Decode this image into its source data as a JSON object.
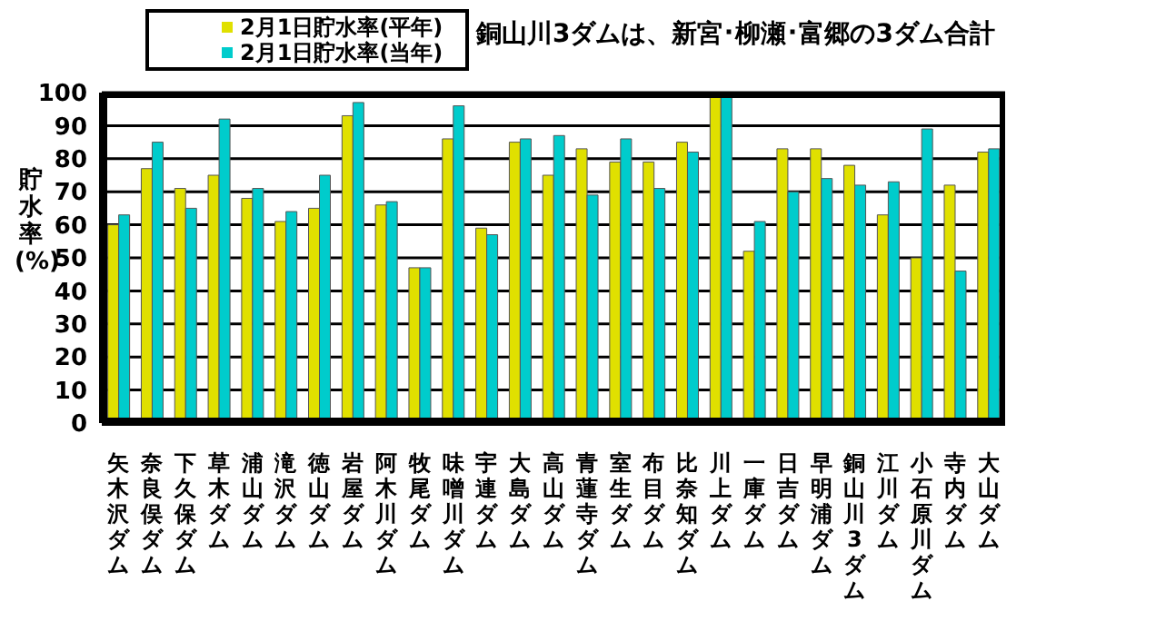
{
  "chart_data": {
    "type": "bar",
    "title": "銅山川3ダムは、新宮･柳瀬･富郷の3ダム合計",
    "ylabel": "貯水率(%)",
    "categories": [
      "矢木沢ダム",
      "奈良俣ダム",
      "下久保ダム",
      "草木ダム",
      "浦山ダム",
      "滝沢ダム",
      "徳山ダム",
      "岩屋ダム",
      "阿木川ダム",
      "牧尾ダム",
      "味噌川ダム",
      "宇連ダム",
      "大島ダム",
      "高山ダム",
      "青蓮寺ダム",
      "室生ダム",
      "布目ダム",
      "比奈知ダム",
      "川上ダム",
      "一庫ダム",
      "日吉ダム",
      "早明浦ダム",
      "銅山川3ダム",
      "江川ダム",
      "小石原川ダム",
      "寺内ダム",
      "大山ダム"
    ],
    "series": [
      {
        "name": "2月1日貯水率(平年)",
        "color": "#e0e000",
        "values": [
          60,
          77,
          71,
          75,
          68,
          61,
          65,
          93,
          66,
          47,
          86,
          59,
          85,
          75,
          83,
          79,
          79,
          85,
          100,
          52,
          83,
          83,
          78,
          63,
          50,
          72,
          82
        ]
      },
      {
        "name": "2月1日貯水率(当年)",
        "color": "#00cccc",
        "values": [
          63,
          85,
          65,
          92,
          71,
          64,
          75,
          97,
          67,
          47,
          96,
          57,
          86,
          87,
          69,
          86,
          71,
          82,
          100,
          61,
          70,
          74,
          72,
          73,
          89,
          46,
          83
        ]
      }
    ],
    "ylim": [
      0,
      100
    ],
    "yticks": [
      0,
      10,
      20,
      30,
      40,
      50,
      60,
      70,
      80,
      90,
      100
    ],
    "grid": "y",
    "legend": "top left"
  }
}
